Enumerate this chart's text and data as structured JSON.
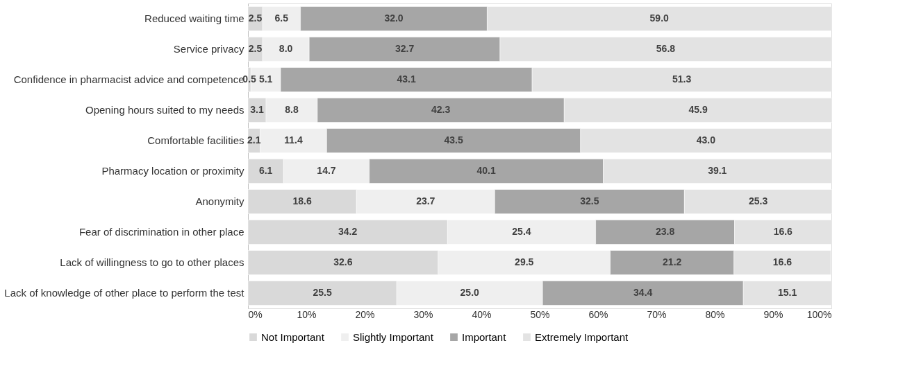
{
  "chart_data": {
    "type": "bar",
    "orientation": "horizontal",
    "stacked": true,
    "legend": "bottom",
    "grid": false,
    "categories": [
      "Reduced waiting time",
      "Service privacy",
      "Confidence in pharmacist advice and competence",
      "Opening hours suited to my needs",
      "Comfortable facilities",
      "Pharmacy location or proximity",
      "Anonymity",
      "Fear of discrimination in other place",
      "Lack of willingness to go to other places",
      "Lack of knowledge of other place to perform the test"
    ],
    "series": [
      {
        "name": "Not Important",
        "color": "#d9d9d9",
        "values": [
          2.5,
          2.5,
          0.5,
          3.1,
          2.1,
          6.1,
          18.6,
          34.2,
          32.6,
          25.5
        ],
        "value_labels": [
          "2.5",
          "2.5",
          "0.5",
          "3.1",
          "2.1",
          "6.1",
          "18.6",
          "34.2",
          "32.6",
          "25.5"
        ]
      },
      {
        "name": "Slightly Important",
        "color": "#efefef",
        "values": [
          6.5,
          8.0,
          5.1,
          8.8,
          11.4,
          14.7,
          23.7,
          25.4,
          29.5,
          25.0
        ],
        "value_labels": [
          "6.5",
          "8.0",
          "5.1",
          "8.8",
          "11.4",
          "14.7",
          "23.7",
          "25.4",
          "29.5",
          "25.0"
        ]
      },
      {
        "name": "Important",
        "color": "#a6a6a6",
        "values": [
          32.0,
          32.7,
          43.1,
          42.3,
          43.5,
          40.1,
          32.5,
          23.8,
          21.2,
          34.4
        ],
        "value_labels": [
          "32.0",
          "32.7",
          "43.1",
          "42.3",
          "43.5",
          "40.1",
          "32.5",
          "23.8",
          "21.2",
          "34.4"
        ]
      },
      {
        "name": "Extremely Important",
        "color": "#e3e3e3",
        "values": [
          59.0,
          56.8,
          51.3,
          45.9,
          43.0,
          39.1,
          25.3,
          16.6,
          16.6,
          15.1
        ],
        "value_labels": [
          "59.0",
          "56.8",
          "51.3",
          "45.9",
          "43.0",
          "39.1",
          "25.3",
          "16.6",
          "16.6",
          "15.1"
        ]
      }
    ],
    "xlim": [
      0,
      100
    ],
    "xticks": [
      {
        "value": 0,
        "label": "0%"
      },
      {
        "value": 10,
        "label": "10%"
      },
      {
        "value": 20,
        "label": "20%"
      },
      {
        "value": 30,
        "label": "30%"
      },
      {
        "value": 40,
        "label": "40%"
      },
      {
        "value": 50,
        "label": "50%"
      },
      {
        "value": 60,
        "label": "60%"
      },
      {
        "value": 70,
        "label": "70%"
      },
      {
        "value": 80,
        "label": "80%"
      },
      {
        "value": 90,
        "label": "90%"
      },
      {
        "value": 100,
        "label": "100%"
      }
    ]
  }
}
